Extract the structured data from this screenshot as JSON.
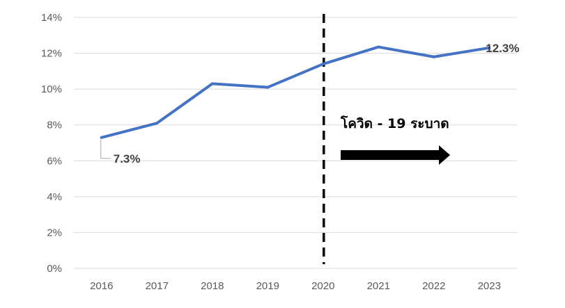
{
  "chart_data": {
    "type": "line",
    "categories": [
      "2016",
      "2017",
      "2018",
      "2019",
      "2020",
      "2021",
      "2022",
      "2023"
    ],
    "series": [
      {
        "values": [
          7.3,
          8.1,
          10.3,
          10.1,
          11.4,
          12.35,
          11.8,
          12.3
        ],
        "color": "#4472c4"
      }
    ],
    "ylim": [
      0,
      14
    ],
    "yticks": [
      0,
      2,
      4,
      6,
      8,
      10,
      12,
      14
    ],
    "ytick_labels": [
      "0%",
      "2%",
      "4%",
      "6%",
      "8%",
      "10%",
      "12%",
      "14%"
    ],
    "grid": true,
    "data_labels": [
      {
        "category": "2016",
        "text": "7.3%"
      },
      {
        "category": "2023",
        "text": "12.3%"
      }
    ],
    "annotations": {
      "divider_category": "2020",
      "text": "โควิด - 19 ระบาด",
      "arrow_color": "#000000"
    }
  }
}
